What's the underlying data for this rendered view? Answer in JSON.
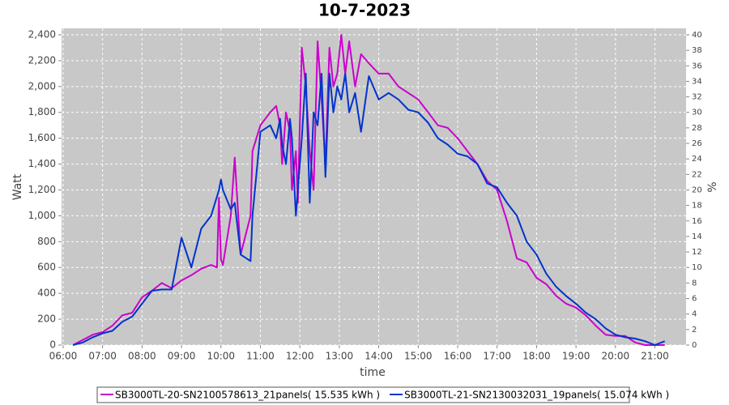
{
  "chart_data": {
    "type": "line",
    "title": "10-7-2023",
    "x_label": "time",
    "y_label": "Watt",
    "y2_label": "%",
    "xlim": [
      5.96,
      21.79
    ],
    "xticks": [
      {
        "value": 6,
        "label": "06:00"
      },
      {
        "value": 7,
        "label": "07:00"
      },
      {
        "value": 8,
        "label": "08:00"
      },
      {
        "value": 9,
        "label": "09:00"
      },
      {
        "value": 10,
        "label": "10:00"
      },
      {
        "value": 11,
        "label": "11:00"
      },
      {
        "value": 12,
        "label": "12:00"
      },
      {
        "value": 13,
        "label": "13:00"
      },
      {
        "value": 14,
        "label": "14:00"
      },
      {
        "value": 15,
        "label": "15:00"
      },
      {
        "value": 16,
        "label": "16:00"
      },
      {
        "value": 17,
        "label": "17:00"
      },
      {
        "value": 18,
        "label": "18:00"
      },
      {
        "value": 19,
        "label": "19:00"
      },
      {
        "value": 20,
        "label": "20:00"
      },
      {
        "value": 21,
        "label": "21:00"
      }
    ],
    "ylim": [
      0,
      2450
    ],
    "yticks": [
      0,
      200,
      400,
      600,
      800,
      {
        "value": 1000,
        "label": "1,000"
      },
      {
        "value": 1200,
        "label": "1,200"
      },
      {
        "value": 1400,
        "label": "1,400"
      },
      {
        "value": 1600,
        "label": "1,600"
      },
      {
        "value": 1800,
        "label": "1,800"
      },
      {
        "value": 2000,
        "label": "2,000"
      },
      {
        "value": 2200,
        "label": "2,200"
      },
      {
        "value": 2400,
        "label": "2,400"
      }
    ],
    "y2lim": [
      0,
      40.83
    ],
    "y2ticks": [
      0,
      2,
      4,
      6,
      8,
      10,
      12,
      14,
      16,
      18,
      20,
      22,
      24,
      26,
      28,
      30,
      32,
      34,
      36,
      38,
      40
    ],
    "grid": true,
    "legend": "bottom",
    "x": [
      6.25,
      6.5,
      6.75,
      7.0,
      7.25,
      7.5,
      7.75,
      8.0,
      8.25,
      8.5,
      8.75,
      9.0,
      9.25,
      9.5,
      9.75,
      9.9,
      9.95,
      10.0,
      10.05,
      10.25,
      10.35,
      10.5,
      10.75,
      10.8,
      11.0,
      11.25,
      11.4,
      11.5,
      11.55,
      11.65,
      11.75,
      11.8,
      11.9,
      11.95,
      12.05,
      12.15,
      12.25,
      12.35,
      12.45,
      12.55,
      12.65,
      12.75,
      12.85,
      12.95,
      13.05,
      13.15,
      13.25,
      13.4,
      13.55,
      13.75,
      14.0,
      14.25,
      14.5,
      14.75,
      15.0,
      15.25,
      15.5,
      15.75,
      16.0,
      16.25,
      16.5,
      16.75,
      17.0,
      17.25,
      17.5,
      17.75,
      18.0,
      18.25,
      18.5,
      18.75,
      19.0,
      19.25,
      19.5,
      19.75,
      20.0,
      20.25,
      20.5,
      20.75,
      21.0,
      21.25
    ],
    "series": [
      {
        "name": "SB3000TL-20-SN2100578613_21panels( 15.535 kWh )",
        "color": "#cc00cc",
        "values": [
          0,
          40,
          80,
          100,
          150,
          230,
          250,
          370,
          420,
          480,
          440,
          500,
          540,
          590,
          620,
          600,
          1140,
          660,
          620,
          1000,
          1450,
          700,
          1000,
          1500,
          1700,
          1800,
          1850,
          1700,
          1400,
          1800,
          1650,
          1200,
          1500,
          1100,
          2300,
          2000,
          1500,
          1200,
          2350,
          1900,
          1400,
          2300,
          2000,
          2100,
          2400,
          2100,
          2350,
          2000,
          2250,
          2180,
          2100,
          2100,
          2000,
          1950,
          1900,
          1800,
          1700,
          1680,
          1600,
          1500,
          1400,
          1270,
          1200,
          960,
          670,
          640,
          520,
          470,
          380,
          320,
          290,
          230,
          150,
          80,
          70,
          70,
          20,
          0,
          0,
          0
        ]
      },
      {
        "name": "SB3000TL-21-SN2130032031_19panels( 15.074 kWh )",
        "color": "#0033cc",
        "values": [
          0,
          20,
          60,
          90,
          110,
          180,
          220,
          320,
          420,
          430,
          430,
          830,
          600,
          900,
          1000,
          1150,
          1200,
          1280,
          1200,
          1050,
          1100,
          700,
          650,
          1000,
          1650,
          1700,
          1600,
          1750,
          1550,
          1400,
          1750,
          1600,
          1000,
          1200,
          1600,
          2100,
          1100,
          1800,
          1700,
          2100,
          1300,
          2100,
          1800,
          2000,
          1900,
          2100,
          1800,
          1950,
          1650,
          2080,
          1900,
          1950,
          1900,
          1820,
          1800,
          1720,
          1600,
          1550,
          1480,
          1460,
          1400,
          1250,
          1220,
          1100,
          1000,
          800,
          700,
          550,
          450,
          380,
          320,
          250,
          200,
          130,
          80,
          60,
          50,
          30,
          0,
          30
        ]
      }
    ]
  }
}
